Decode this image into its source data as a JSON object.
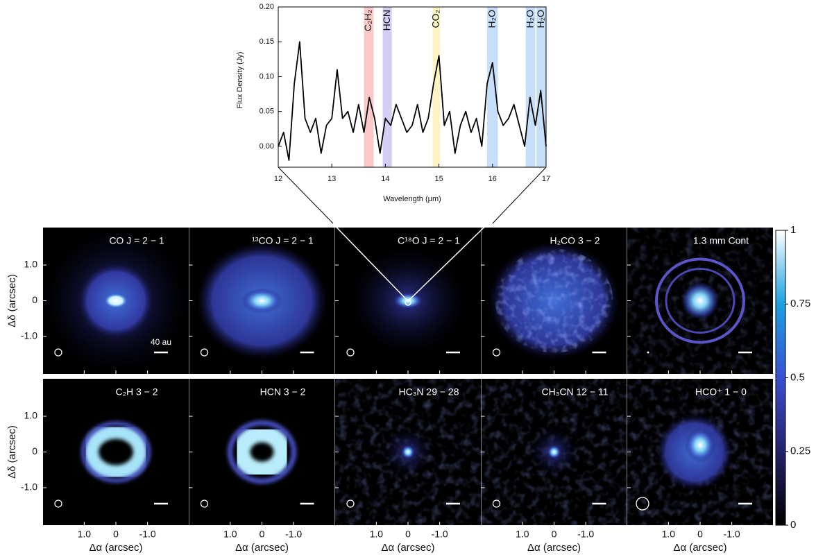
{
  "chart_data": {
    "type": "line",
    "xlabel": "Wavelength (μm)",
    "ylabel": "Flux Density (Jy)",
    "x": [
      12.0,
      12.1,
      12.2,
      12.3,
      12.4,
      12.5,
      12.6,
      12.7,
      12.8,
      12.9,
      13.0,
      13.1,
      13.2,
      13.3,
      13.4,
      13.5,
      13.6,
      13.7,
      13.8,
      13.9,
      14.0,
      14.1,
      14.2,
      14.3,
      14.4,
      14.5,
      14.6,
      14.7,
      14.8,
      14.9,
      15.0,
      15.1,
      15.2,
      15.3,
      15.4,
      15.5,
      15.6,
      15.7,
      15.8,
      15.9,
      16.0,
      16.1,
      16.2,
      16.3,
      16.4,
      16.5,
      16.6,
      16.7,
      16.8,
      16.9,
      17.0
    ],
    "values": [
      0.0,
      0.02,
      -0.02,
      0.09,
      0.15,
      0.04,
      0.02,
      0.04,
      -0.01,
      0.03,
      0.04,
      0.11,
      0.04,
      0.05,
      0.02,
      0.06,
      0.02,
      0.07,
      0.04,
      -0.01,
      0.04,
      0.03,
      0.06,
      0.04,
      0.02,
      0.03,
      0.06,
      0.02,
      0.04,
      0.09,
      0.13,
      0.03,
      0.05,
      -0.01,
      0.03,
      0.05,
      0.02,
      0.04,
      0.0,
      0.09,
      0.12,
      0.05,
      0.03,
      0.04,
      0.06,
      0.03,
      0.0,
      0.07,
      0.03,
      0.08,
      0.0
    ],
    "color": "#000000",
    "xlim": [
      12,
      17
    ],
    "xticks": [
      12,
      13,
      14,
      15,
      16,
      17
    ],
    "ylim": [
      -0.03,
      0.2
    ],
    "yticks": [
      {
        "value": 0,
        "label": "0.00"
      },
      {
        "value": 0.05,
        "label": "0.05"
      },
      {
        "value": 0.1,
        "label": "0.10"
      },
      {
        "value": 0.15,
        "label": "0.15"
      },
      {
        "value": 0.2,
        "label": "0.20"
      }
    ],
    "bands": [
      {
        "label": "C₂H₂",
        "range": [
          13.6,
          13.78
        ],
        "color": "#f8c9c7"
      },
      {
        "label": "HCN",
        "range": [
          13.95,
          14.12
        ],
        "color": "#d5cdf3"
      },
      {
        "label": "CO₂",
        "range": [
          14.88,
          15.02
        ],
        "color": "#fbf4c0"
      },
      {
        "label": "H₂O",
        "range": [
          15.9,
          16.1
        ],
        "color": "#c6def9"
      },
      {
        "label": "H₂O",
        "range": [
          16.62,
          16.8
        ],
        "color": "#c6def9"
      },
      {
        "label": "H₂O",
        "range": [
          16.82,
          17.0
        ],
        "color": "#c6def9"
      }
    ]
  },
  "panels": [
    {
      "title": "CO J = 2 − 1",
      "scale_label": "40 au"
    },
    {
      "title": "¹³CO J = 2 − 1"
    },
    {
      "title": "C¹⁸O J = 2 − 1"
    },
    {
      "title": "H₂CO 3 − 2"
    },
    {
      "title": "1.3 mm Cont"
    },
    {
      "title": "C₂H 3 − 2"
    },
    {
      "title": "HCN 3 − 2"
    },
    {
      "title": "HC₃N 29 − 28"
    },
    {
      "title": "CH₃CN 12 − 11"
    },
    {
      "title": "HCO⁺ 1 − 0"
    }
  ],
  "panel_axes": {
    "xlabel": "Δα (arcsec)",
    "ylabel": "Δδ (arcsec)",
    "xlim": [
      2.3,
      -2.3
    ],
    "ylim": [
      -2.05,
      2.05
    ],
    "xticks": [
      {
        "value": 1,
        "label": "1.0"
      },
      0,
      {
        "value": -1,
        "label": "-1.0"
      }
    ],
    "yticks": [
      {
        "value": 1,
        "label": "1.0"
      },
      0,
      {
        "value": -1,
        "label": "-1.0"
      }
    ]
  },
  "colorbar": {
    "lim": [
      0,
      1
    ],
    "ticks": [
      0,
      0.25,
      0.5,
      0.75,
      1
    ]
  }
}
